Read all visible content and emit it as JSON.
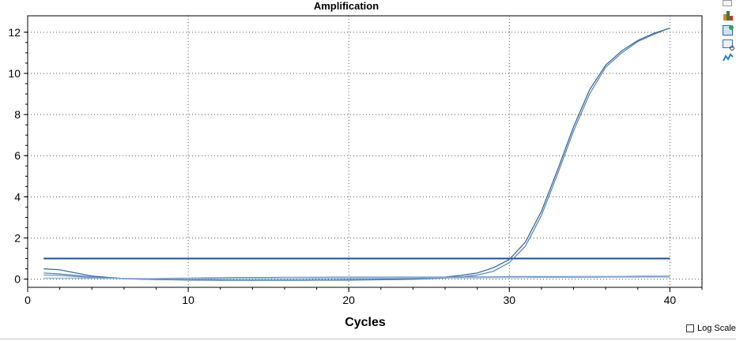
{
  "chart_data": {
    "type": "line",
    "title": "Amplification",
    "xlabel": "Cycles",
    "ylabel": "",
    "xlim": [
      0,
      42
    ],
    "ylim": [
      -0.4,
      12.8
    ],
    "xticks": [
      0,
      10,
      20,
      30,
      40
    ],
    "yticks": [
      0,
      2,
      4,
      6,
      8,
      10,
      12
    ],
    "grid": "dotted",
    "threshold": 1.0,
    "x": [
      1,
      2,
      3,
      4,
      5,
      6,
      7,
      8,
      9,
      10,
      11,
      12,
      13,
      14,
      15,
      16,
      17,
      18,
      19,
      20,
      21,
      22,
      23,
      24,
      25,
      26,
      27,
      28,
      29,
      30,
      31,
      32,
      33,
      34,
      35,
      36,
      37,
      38,
      39,
      40
    ],
    "series": [
      {
        "color": "#2f5f95",
        "values": [
          0.5,
          0.45,
          0.3,
          0.15,
          0.08,
          0.03,
          0.0,
          -0.02,
          -0.03,
          -0.04,
          -0.04,
          -0.05,
          -0.05,
          -0.05,
          -0.05,
          -0.05,
          -0.05,
          -0.04,
          -0.04,
          -0.03,
          -0.02,
          -0.01,
          0.0,
          0.02,
          0.05,
          0.1,
          0.18,
          0.3,
          0.55,
          0.95,
          1.8,
          3.3,
          5.3,
          7.4,
          9.2,
          10.4,
          11.1,
          11.6,
          11.95,
          12.2
        ]
      },
      {
        "color": "#4f7fb5",
        "values": [
          0.3,
          0.25,
          0.18,
          0.1,
          0.05,
          0.02,
          0.0,
          -0.02,
          -0.03,
          -0.04,
          -0.05,
          -0.06,
          -0.06,
          -0.06,
          -0.06,
          -0.06,
          -0.06,
          -0.05,
          -0.05,
          -0.05,
          -0.04,
          -0.03,
          -0.02,
          -0.01,
          0.02,
          0.05,
          0.1,
          0.2,
          0.38,
          0.8,
          1.6,
          3.1,
          5.1,
          7.2,
          9.0,
          10.3,
          11.0,
          11.55,
          11.9,
          12.2
        ]
      },
      {
        "color": "#6d96c4",
        "values": [
          0.2,
          0.18,
          0.12,
          0.08,
          0.05,
          0.03,
          0.02,
          0.03,
          0.04,
          0.05,
          0.06,
          0.07,
          0.08,
          0.08,
          0.08,
          0.09,
          0.09,
          0.09,
          0.1,
          0.1,
          0.1,
          0.1,
          0.1,
          0.1,
          0.1,
          0.1,
          0.11,
          0.11,
          0.11,
          0.12,
          0.12,
          0.12,
          0.12,
          0.13,
          0.13,
          0.13,
          0.13,
          0.14,
          0.14,
          0.15
        ]
      },
      {
        "color": "#8aaed6",
        "values": [
          0.05,
          0.05,
          0.05,
          0.04,
          0.04,
          0.03,
          0.03,
          0.02,
          0.02,
          0.02,
          0.02,
          0.02,
          0.03,
          0.03,
          0.03,
          0.03,
          0.03,
          0.04,
          0.04,
          0.04,
          0.05,
          0.05,
          0.05,
          0.05,
          0.06,
          0.06,
          0.06,
          0.06,
          0.07,
          0.07,
          0.07,
          0.08,
          0.08,
          0.08,
          0.08,
          0.09,
          0.09,
          0.09,
          0.1,
          0.1
        ]
      }
    ]
  },
  "controls": {
    "log_scale_label": "Log Scale",
    "log_scale_checked": false
  },
  "toolbar": {
    "icons": [
      "page-icon",
      "chart-type-icon",
      "export-image-icon",
      "zoom-icon",
      "curve-settings-icon"
    ]
  },
  "colors": {
    "threshold": "#1f4e8c",
    "axis": "#000000",
    "grid": "#555555"
  }
}
